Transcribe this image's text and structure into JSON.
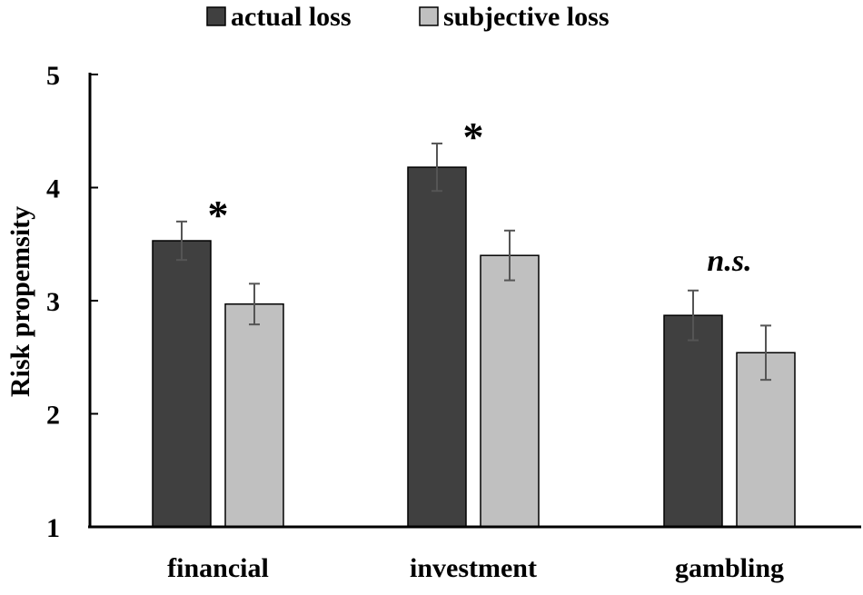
{
  "chart_data": {
    "type": "bar",
    "ylabel": "Risk propemsity",
    "ylim": [
      1,
      5
    ],
    "yticks": [
      1,
      2,
      3,
      4,
      5
    ],
    "categories": [
      "financial",
      "investment",
      "gambling"
    ],
    "legend_position": "top",
    "series": [
      {
        "name": "actual loss",
        "color": "#404040",
        "values": [
          3.53,
          4.18,
          2.87
        ],
        "errors": [
          0.17,
          0.21,
          0.22
        ]
      },
      {
        "name": "subjective loss",
        "color": "#c0c0c0",
        "values": [
          2.97,
          3.4,
          2.54
        ],
        "errors": [
          0.18,
          0.22,
          0.24
        ]
      }
    ],
    "annotations": [
      {
        "category": "financial",
        "text": "*"
      },
      {
        "category": "investment",
        "text": "*"
      },
      {
        "category": "gambling",
        "text": "n.s."
      }
    ],
    "grid": false
  }
}
